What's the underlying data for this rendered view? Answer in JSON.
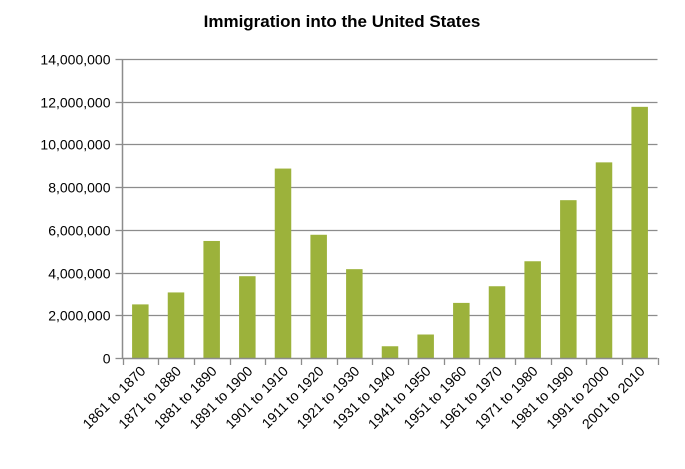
{
  "chart_data": {
    "type": "bar",
    "title": "Immigration into the United States",
    "xlabel": "",
    "ylabel": "",
    "ylim": [
      0,
      14000000
    ],
    "yticks": [
      0,
      2000000,
      4000000,
      6000000,
      8000000,
      10000000,
      12000000,
      14000000
    ],
    "ytick_labels": [
      "0",
      "2,000,000",
      "4,000,000",
      "6,000,000",
      "8,000,000",
      "10,000,000",
      "12,000,000",
      "14,000,000"
    ],
    "grid": true,
    "legend": "none",
    "bar_color": "#9CB23B",
    "categories": [
      "1861 to 1870",
      "1871 to 1880",
      "1881 to 1890",
      "1891 to 1900",
      "1901 to 1910",
      "1911 to 1920",
      "1921 to 1930",
      "1931 to 1940",
      "1941 to 1950",
      "1951 to 1960",
      "1961 to 1970",
      "1971 to 1980",
      "1981 to 1990",
      "1991 to 2000",
      "2001 to 2010"
    ],
    "values": [
      2510000,
      3070000,
      5480000,
      3830000,
      8870000,
      5770000,
      4160000,
      550000,
      1100000,
      2580000,
      3360000,
      4530000,
      7390000,
      9160000,
      11760000
    ]
  }
}
